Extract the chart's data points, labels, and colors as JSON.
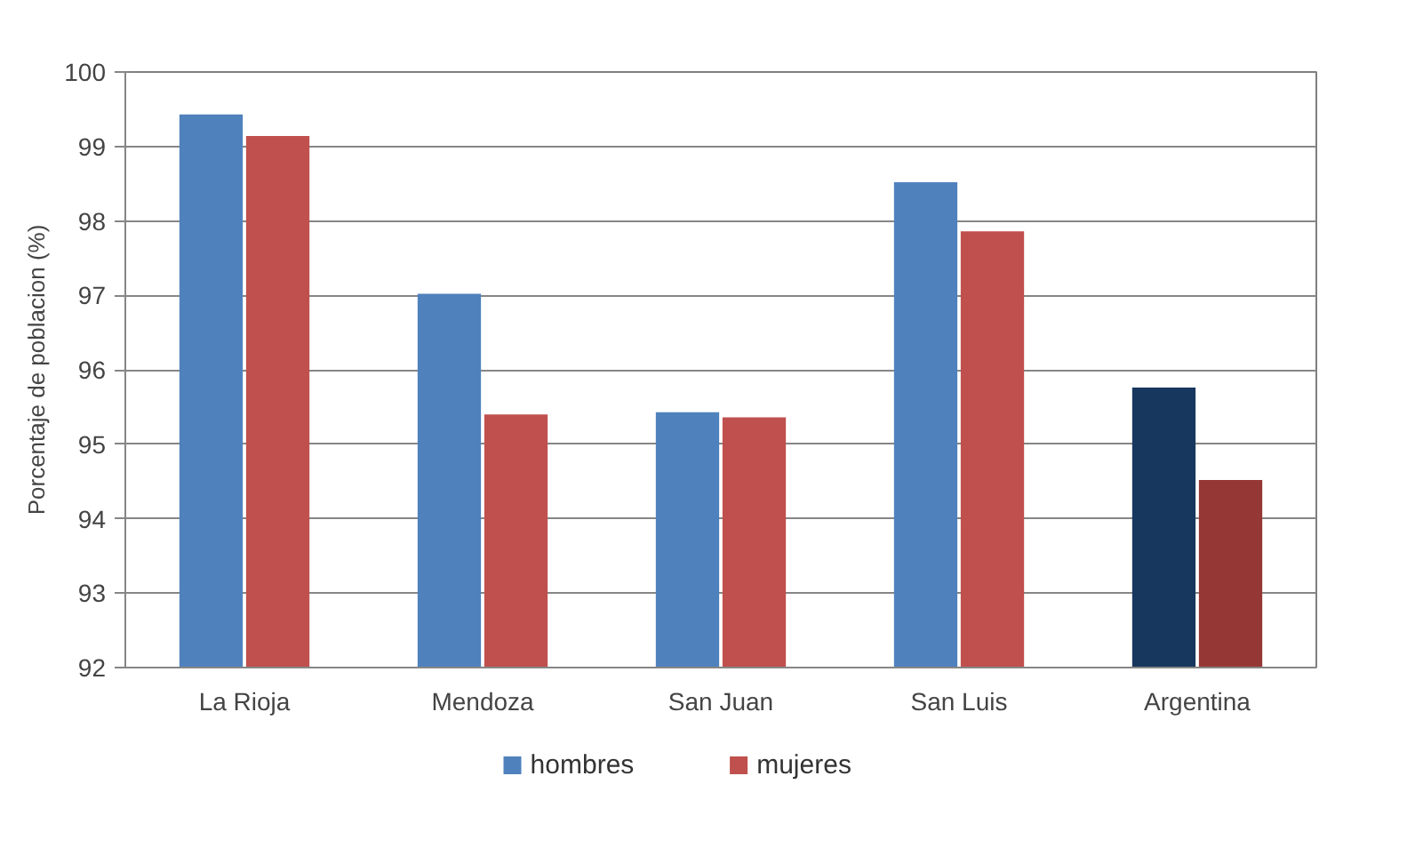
{
  "chart_data": {
    "type": "bar",
    "ylabel": "Porcentaje de poblacion (%)",
    "categories": [
      "La Rioja",
      "Mendoza",
      "San Juan",
      "San Luis",
      "Argentina"
    ],
    "series": [
      {
        "name": "hombres",
        "color": "#4f81bd",
        "colors": [
          "#4f81bd",
          "#4f81bd",
          "#4f81bd",
          "#4f81bd",
          "#17375e"
        ],
        "values": [
          99.43,
          97.02,
          95.43,
          98.52,
          95.76
        ]
      },
      {
        "name": "mujeres",
        "color": "#c0504d",
        "colors": [
          "#c0504d",
          "#c0504d",
          "#c0504d",
          "#c0504d",
          "#953735"
        ],
        "values": [
          99.14,
          95.4,
          95.36,
          97.86,
          94.52
        ]
      }
    ],
    "ylim": [
      92,
      100
    ],
    "yticks": [
      92,
      93,
      94,
      95,
      96,
      97,
      98,
      99,
      100
    ],
    "grid": "y",
    "legend": "bottom"
  }
}
